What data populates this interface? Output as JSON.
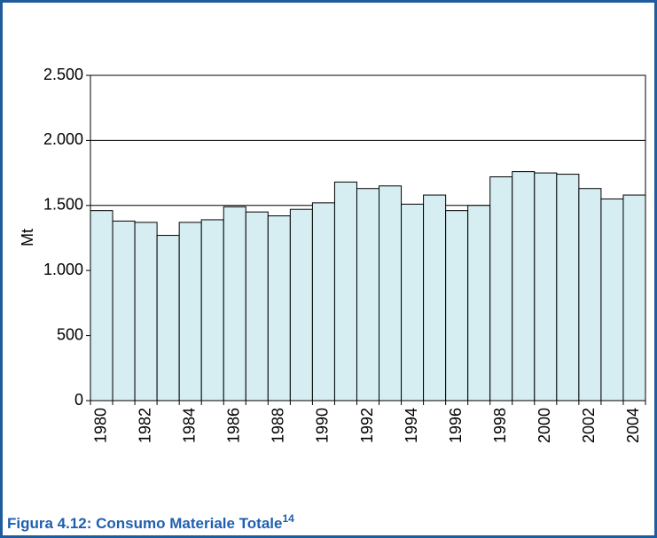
{
  "chart_data": {
    "type": "bar",
    "title": "Figura 4.12: Consumo Materiale Totale",
    "footnote": "14",
    "ylabel": "Mt",
    "categories": [
      "1980",
      null,
      "1982",
      null,
      "1984",
      null,
      "1986",
      null,
      "1988",
      null,
      "1990",
      null,
      "1992",
      null,
      "1994",
      null,
      "1996",
      null,
      "1998",
      null,
      "2000",
      null,
      "2002",
      null,
      "2004"
    ],
    "values": [
      1460,
      1380,
      1370,
      1270,
      1370,
      1390,
      1490,
      1450,
      1420,
      1470,
      1520,
      1680,
      1630,
      1650,
      1510,
      1580,
      1460,
      1500,
      1720,
      1760,
      1750,
      1740,
      1630,
      1550,
      1580
    ],
    "color": "#d6eef2",
    "ylim": [
      0,
      2500
    ],
    "yticks": [
      0,
      500,
      {
        "value": 1000,
        "label": "1.000"
      },
      {
        "value": 1500,
        "label": "1.500"
      },
      {
        "value": 2000,
        "label": "2.000"
      },
      {
        "value": 2500,
        "label": "2.500"
      }
    ],
    "grid": true
  }
}
